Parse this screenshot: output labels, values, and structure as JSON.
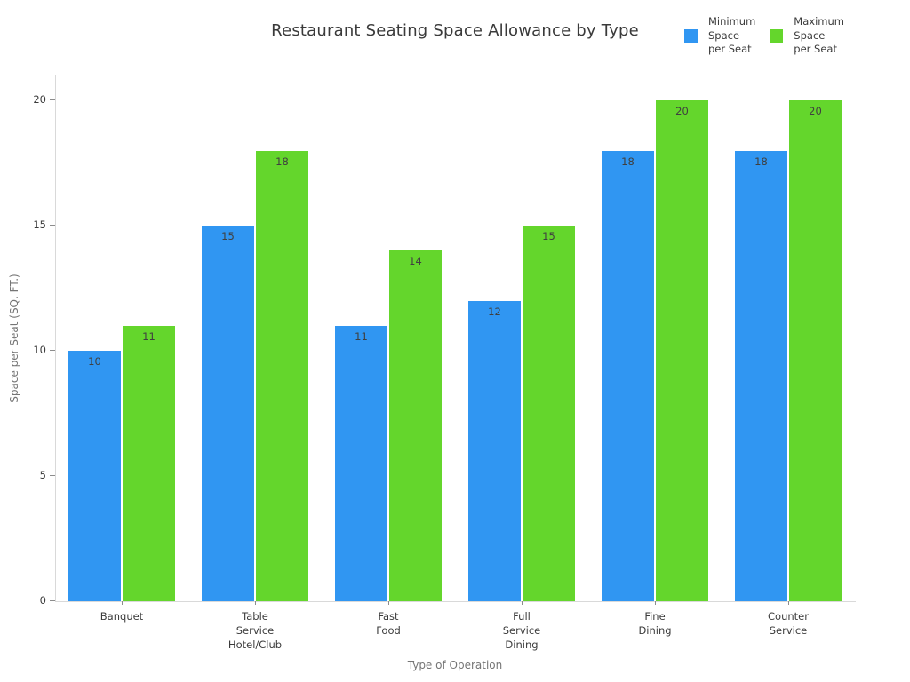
{
  "chart_data": {
    "type": "bar",
    "title": "Restaurant Seating Space Allowance by Type",
    "xlabel": "Type of Operation",
    "ylabel": "Space per Seat (SQ. FT.)",
    "categories": [
      {
        "label": "Banquet",
        "lines": [
          "Banquet"
        ]
      },
      {
        "label": "Table Service Hotel/Club",
        "lines": [
          "Table",
          "Service",
          "Hotel/Club"
        ]
      },
      {
        "label": "Fast Food",
        "lines": [
          "Fast",
          "Food"
        ]
      },
      {
        "label": "Full Service Dining",
        "lines": [
          "Full",
          "Service",
          "Dining"
        ]
      },
      {
        "label": "Fine Dining",
        "lines": [
          "Fine",
          "Dining"
        ]
      },
      {
        "label": "Counter Service",
        "lines": [
          "Counter",
          "Service"
        ]
      }
    ],
    "series": [
      {
        "name": "Minimum Space per Seat",
        "name_lines": [
          "Minimum",
          "Space",
          "per Seat"
        ],
        "color": "#3096F2",
        "values": [
          10,
          15,
          11,
          12,
          18,
          18
        ]
      },
      {
        "name": "Maximum Space per Seat",
        "name_lines": [
          "Maximum",
          "Space",
          "per Seat"
        ],
        "color": "#64D62C",
        "values": [
          11,
          18,
          14,
          15,
          20,
          20
        ]
      }
    ],
    "yticks": [
      0,
      5,
      10,
      15,
      20
    ],
    "ylim": [
      0,
      21
    ],
    "grid": false,
    "legend_position": "top-right",
    "colors": {
      "title": "#3a3a3a",
      "tick_label": "#3b3b3b",
      "axis_title": "#757575",
      "axis_line": "#d9d9d9",
      "tick_mark": "#8c8c8c",
      "value_label": "#3f3f3f",
      "background": "#ffffff"
    }
  }
}
